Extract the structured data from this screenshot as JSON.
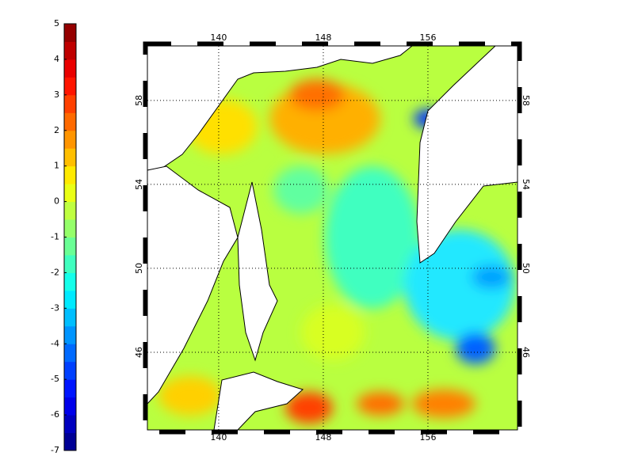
{
  "colorbar": {
    "ticks": [
      5,
      4,
      3,
      2,
      1,
      0,
      -1,
      -2,
      -3,
      -4,
      -5,
      -6,
      -7
    ],
    "limits": [
      -7,
      5
    ],
    "levels": 24,
    "colormap": "jet"
  },
  "map": {
    "lon_ticks": [
      140,
      148,
      156
    ],
    "lat_ticks": [
      58,
      54,
      50,
      46
    ],
    "xlim": [
      134.55,
      162.85
    ],
    "ylim": [
      42.3,
      60.6
    ],
    "grid": true
  }
}
